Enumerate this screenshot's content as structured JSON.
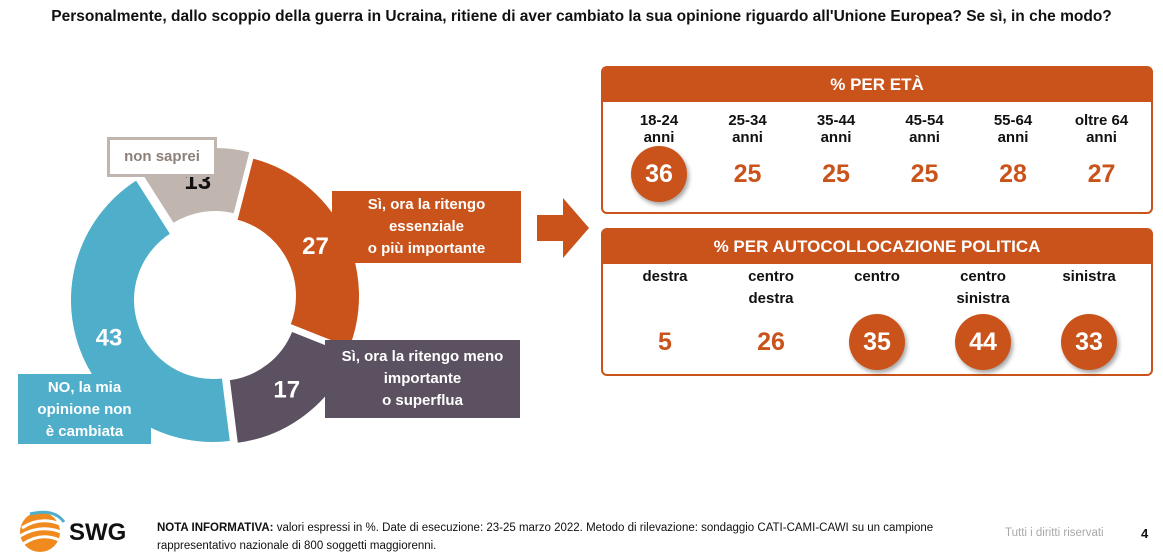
{
  "title": "Personalmente, dallo scoppio della guerra in Ucraina, ritiene di aver cambiato la sua opinione riguardo all'Unione Europea? Se sì, in che modo?",
  "chart_data": [
    {
      "type": "pie",
      "variant": "donut",
      "slices": [
        {
          "label": "Sì, ora la ritengo essenziale o più importante",
          "value": 27,
          "color": "#c9531a"
        },
        {
          "label": "Sì, ora la ritengo meno importante o superflua",
          "value": 17,
          "color": "#5c5160"
        },
        {
          "label": "NO, la mia opinione non è cambiata",
          "value": 43,
          "color": "#4faec9"
        },
        {
          "label": "non saprei",
          "value": 13,
          "color": "#c1b6af"
        }
      ]
    },
    {
      "type": "table",
      "title": "% PER ETÀ",
      "categories": [
        "18-24 anni",
        "25-34 anni",
        "35-44 anni",
        "45-54 anni",
        "55-64 anni",
        "oltre 64 anni"
      ],
      "values": [
        36,
        25,
        25,
        25,
        28,
        27
      ],
      "highlighted": [
        36
      ]
    },
    {
      "type": "table",
      "title": "% PER AUTOCOLLOCAZIONE POLITICA",
      "categories": [
        "destra",
        "centro destra",
        "centro",
        "centro sinistra",
        "sinistra"
      ],
      "values": [
        5,
        26,
        35,
        44,
        33
      ],
      "highlighted": [
        35,
        44,
        33
      ]
    }
  ],
  "donut": {
    "values": [
      "27",
      "17",
      "43",
      "13"
    ],
    "callouts": {
      "si_importante": [
        "Sì, ora la ritengo",
        "essenziale",
        "o più importante"
      ],
      "si_meno": [
        "Sì, ora la ritengo meno",
        "importante",
        "o superflua"
      ],
      "no": [
        "NO, la mia",
        "opinione non",
        "è cambiata"
      ],
      "non_saprei": "non saprei"
    }
  },
  "age_panel": {
    "title": "% PER ETÀ",
    "cols": [
      {
        "l1": "18-24",
        "l2": "anni",
        "value": "36",
        "hl": true
      },
      {
        "l1": "25-34",
        "l2": "anni",
        "value": "25",
        "hl": false
      },
      {
        "l1": "35-44",
        "l2": "anni",
        "value": "25",
        "hl": false
      },
      {
        "l1": "45-54",
        "l2": "anni",
        "value": "25",
        "hl": false
      },
      {
        "l1": "55-64",
        "l2": "anni",
        "value": "28",
        "hl": false
      },
      {
        "l1": "oltre 64",
        "l2": "anni",
        "value": "27",
        "hl": false
      }
    ]
  },
  "pol_panel": {
    "title": "% PER AUTOCOLLOCAZIONE POLITICA",
    "cols": [
      {
        "l1": "destra",
        "l2": "",
        "value": "5",
        "hl": false
      },
      {
        "l1": "centro",
        "l2": "destra",
        "value": "26",
        "hl": false
      },
      {
        "l1": "centro",
        "l2": "",
        "value": "35",
        "hl": true
      },
      {
        "l1": "centro",
        "l2": "sinistra",
        "value": "44",
        "hl": true
      },
      {
        "l1": "sinistra",
        "l2": "",
        "value": "33",
        "hl": true
      }
    ]
  },
  "footer": {
    "brand": "SWG",
    "note_label": "NOTA INFORMATIVA:",
    "note_text": "valori espressi in %. Date di esecuzione: 23-25 marzo 2022. Metodo di rilevazione: sondaggio CATI-CAMI-CAWI su un campione rappresentativo nazionale di 800 soggetti maggiorenni.",
    "rights": "Tutti i diritti riservati",
    "page": "4"
  },
  "colors": {
    "accent": "#c9531a",
    "dark": "#5c5160",
    "blue": "#4faec9",
    "grey": "#c1b6af"
  }
}
